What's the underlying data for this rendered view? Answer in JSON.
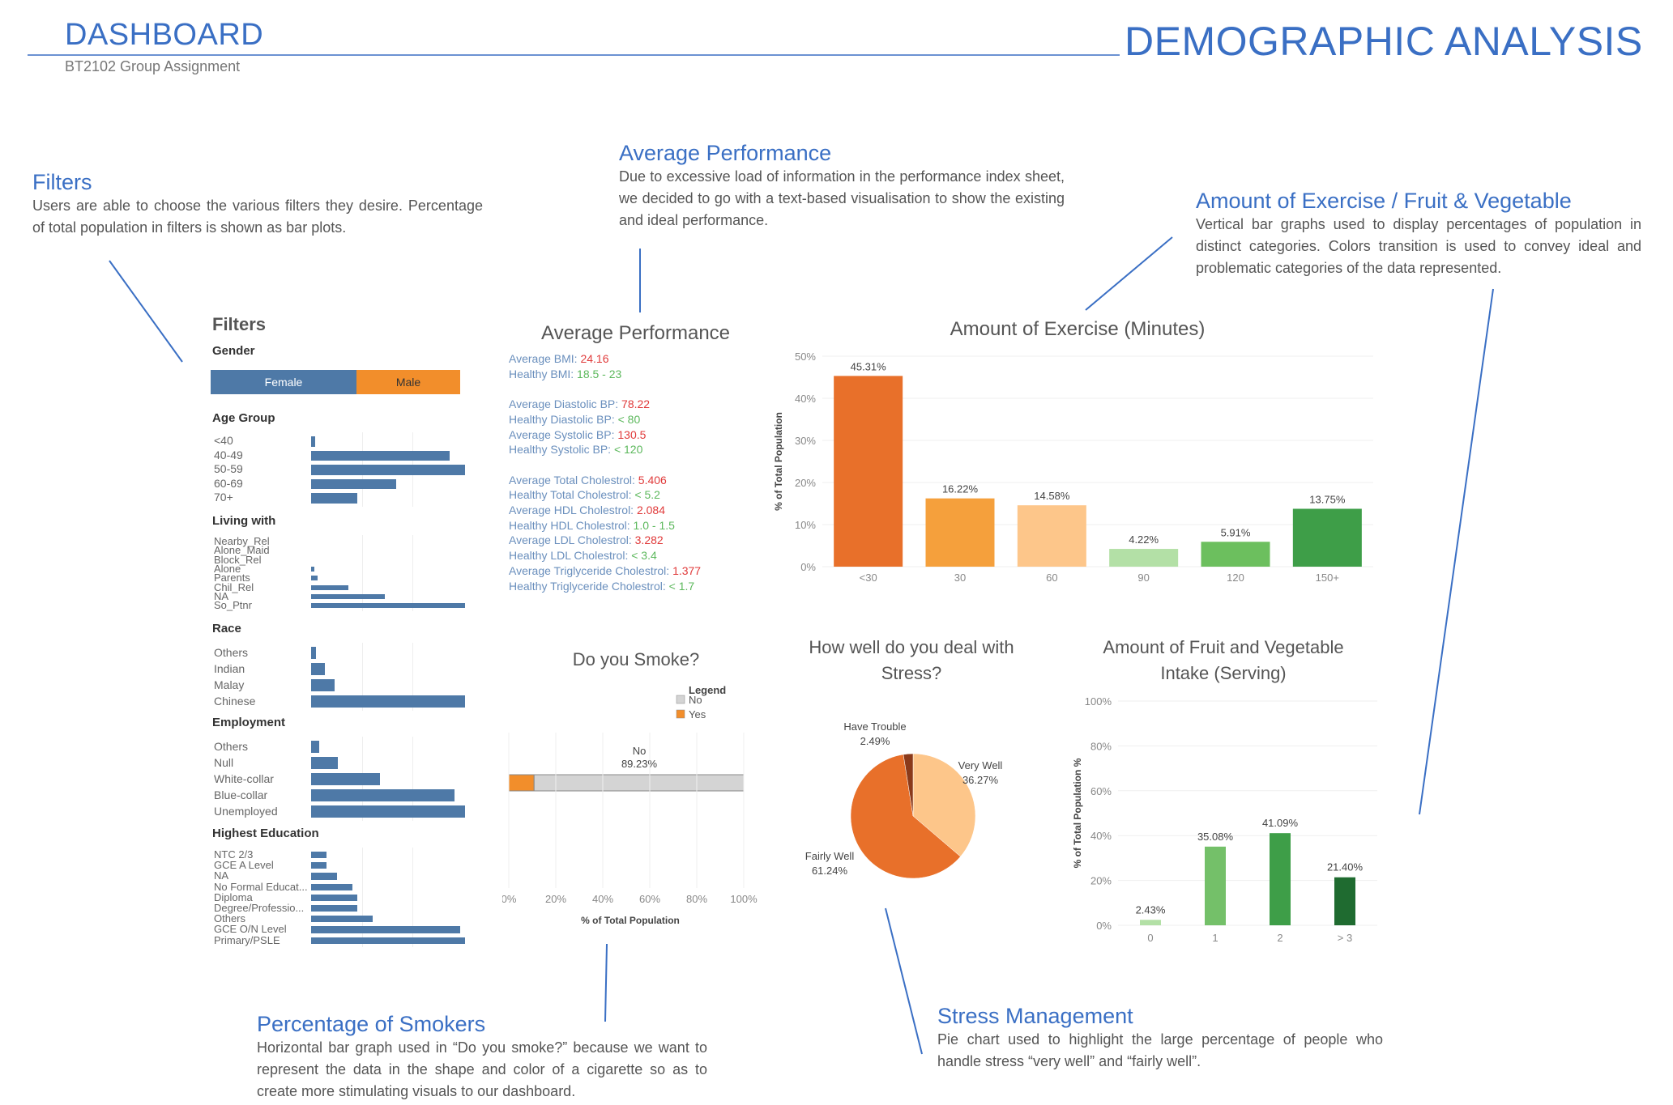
{
  "header": {
    "title": "DASHBOARD",
    "subtitle": "BT2102 Group Assignment",
    "page_title": "DEMOGRAPHIC ANALYSIS"
  },
  "annotations": {
    "filters": {
      "title": "Filters",
      "text": "Users are able to choose the various filters they desire. Percentage of total population in filters is shown as bar plots."
    },
    "performance": {
      "title": "Average Performance",
      "text": "Due to excessive load of information in the performance index sheet, we decided to go with a text-based visualisation to show the existing and ideal performance."
    },
    "exercise": {
      "title": "Amount of Exercise / Fruit & Vegetable",
      "text": "Vertical bar graphs used to display percentages of population in distinct categories. Colors transition is used to convey ideal and problematic categories of the data represented."
    },
    "smokers": {
      "title": "Percentage of Smokers",
      "text": "Horizontal bar graph used in “Do you smoke?” because we want to represent the data in the shape and color of a cigarette so as to create more stimulating visuals to our dashboard."
    },
    "stress": {
      "title": "Stress Management",
      "text": "Pie chart used to highlight the large percentage of people who handle stress “very well” and “fairly well”."
    }
  },
  "filters": {
    "title": "Filters",
    "gender": {
      "label": "Gender",
      "options": [
        "Female",
        "Male"
      ],
      "colors": [
        "#4e79a7",
        "#f28e2b"
      ]
    },
    "sections": [
      {
        "label": "Age Group",
        "items": [
          "<40",
          "40-49",
          "50-59",
          "60-69",
          "70+"
        ],
        "values": [
          0.5,
          18,
          20,
          11,
          6
        ]
      },
      {
        "label": "Living with",
        "items": [
          "Nearby_Rel",
          "Alone_Maid",
          "Block_Rel",
          "Alone",
          "Parents",
          "Chil_Rel",
          "NA",
          "So_Ptnr"
        ],
        "values": [
          0,
          0,
          0,
          0.5,
          1,
          6,
          12,
          25
        ]
      },
      {
        "label": "Race",
        "items": [
          "Others",
          "Indian",
          "Malay",
          "Chinese"
        ],
        "values": [
          1,
          3,
          5,
          33
        ]
      },
      {
        "label": "Employment",
        "items": [
          "Others",
          "Null",
          "White-collar",
          "Blue-collar",
          "Unemployed"
        ],
        "values": [
          1.5,
          5,
          13,
          27,
          29
        ]
      },
      {
        "label": "Highest Education",
        "items": [
          "NTC 2/3",
          "GCE A Level",
          "NA",
          "No Formal Educat...",
          "Diploma",
          "Degree/Professio...",
          "Others",
          "GCE O/N Level",
          "Primary/PSLE"
        ],
        "values": [
          3,
          3,
          5,
          8,
          9,
          9,
          12,
          29,
          30
        ]
      }
    ],
    "bar_color": "#4e79a7"
  },
  "performance": {
    "title": "Average Performance",
    "groups": [
      [
        {
          "label": "Average BMI: ",
          "value": "24.16",
          "tone": "red"
        },
        {
          "label": "Healthy BMI: ",
          "value": "18.5 - 23",
          "tone": "green"
        }
      ],
      [
        {
          "label": "Average Diastolic BP: ",
          "value": "78.22",
          "tone": "red"
        },
        {
          "label": "Healthy Diastolic BP: ",
          "value": "< 80",
          "tone": "green"
        },
        {
          "label": "Average Systolic BP: ",
          "value": "130.5",
          "tone": "red"
        },
        {
          "label": "Healthy Systolic BP: ",
          "value": "< 120",
          "tone": "green"
        }
      ],
      [
        {
          "label": "Average Total Cholestrol: ",
          "value": "5.406",
          "tone": "red"
        },
        {
          "label": "Healthy Total Cholestrol: ",
          "value": "< 5.2",
          "tone": "green"
        },
        {
          "label": "Average HDL Cholestrol: ",
          "value": "2.084",
          "tone": "red"
        },
        {
          "label": "Healthy HDL Cholestrol: ",
          "value": "1.0 - 1.5",
          "tone": "green"
        },
        {
          "label": "Average LDL Cholestrol: ",
          "value": "3.282",
          "tone": "red"
        },
        {
          "label": "Healthy LDL Cholestrol: ",
          "value": "< 3.4",
          "tone": "green"
        },
        {
          "label": "Average Triglyceride Cholestrol: ",
          "value": "1.377",
          "tone": "red"
        },
        {
          "label": "Healthy Triglyceride Cholestrol: ",
          "value": "< 1.7",
          "tone": "green"
        }
      ]
    ]
  },
  "chart_data": [
    {
      "id": "exercise",
      "type": "bar",
      "title": "Amount of Exercise (Minutes)",
      "ylabel": "% of Total Population",
      "categories": [
        "<30",
        "30",
        "60",
        "90",
        "120",
        "150+"
      ],
      "values": [
        45.31,
        16.22,
        14.58,
        4.22,
        5.91,
        13.75
      ],
      "labels": [
        "45.31%",
        "16.22%",
        "14.58%",
        "4.22%",
        "5.91%",
        "13.75%"
      ],
      "colors": [
        "#e8702a",
        "#f5a03c",
        "#fdc68a",
        "#b3e0a6",
        "#6cbf5e",
        "#3e9e48"
      ],
      "ylim": [
        0,
        50
      ],
      "yticks": [
        "0%",
        "10%",
        "20%",
        "30%",
        "40%",
        "50%"
      ]
    },
    {
      "id": "smoke",
      "type": "bar",
      "orientation": "horizontal",
      "title": "Do you Smoke?",
      "legend_title": "Legend",
      "legend": [
        "No",
        "Yes"
      ],
      "series": [
        {
          "name": "Yes",
          "value": 10.77,
          "color": "#f28e2b"
        },
        {
          "name": "No",
          "value": 89.23,
          "color": "#d4d4d4"
        }
      ],
      "bar_label": [
        "No",
        "89.23%"
      ],
      "xlabel": "% of Total Population",
      "xticks": [
        "0%",
        "20%",
        "40%",
        "60%",
        "80%",
        "100%"
      ]
    },
    {
      "id": "stress",
      "type": "pie",
      "title": [
        "How well do you deal with",
        "Stress?"
      ],
      "slices": [
        {
          "name": "Very Well",
          "value": 36.27,
          "label": "36.27%",
          "color": "#fdc68a"
        },
        {
          "name": "Fairly Well",
          "value": 61.24,
          "label": "61.24%",
          "color": "#e8702a"
        },
        {
          "name": "Have Trouble",
          "value": 2.49,
          "label": "2.49%",
          "color": "#8b3a1a"
        }
      ]
    },
    {
      "id": "fruit",
      "type": "bar",
      "title": [
        "Amount of Fruit and Vegetable",
        "Intake (Serving)"
      ],
      "ylabel": "% of Total Population %",
      "categories": [
        "0",
        "1",
        "2",
        "> 3"
      ],
      "values": [
        2.43,
        35.08,
        41.09,
        21.4
      ],
      "labels": [
        "2.43%",
        "35.08%",
        "41.09%",
        "21.40%"
      ],
      "colors": [
        "#b3e0a6",
        "#74c069",
        "#3e9e48",
        "#1f6b30"
      ],
      "ylim": [
        0,
        100
      ],
      "yticks": [
        "0%",
        "20%",
        "40%",
        "60%",
        "80%",
        "100%"
      ]
    }
  ]
}
